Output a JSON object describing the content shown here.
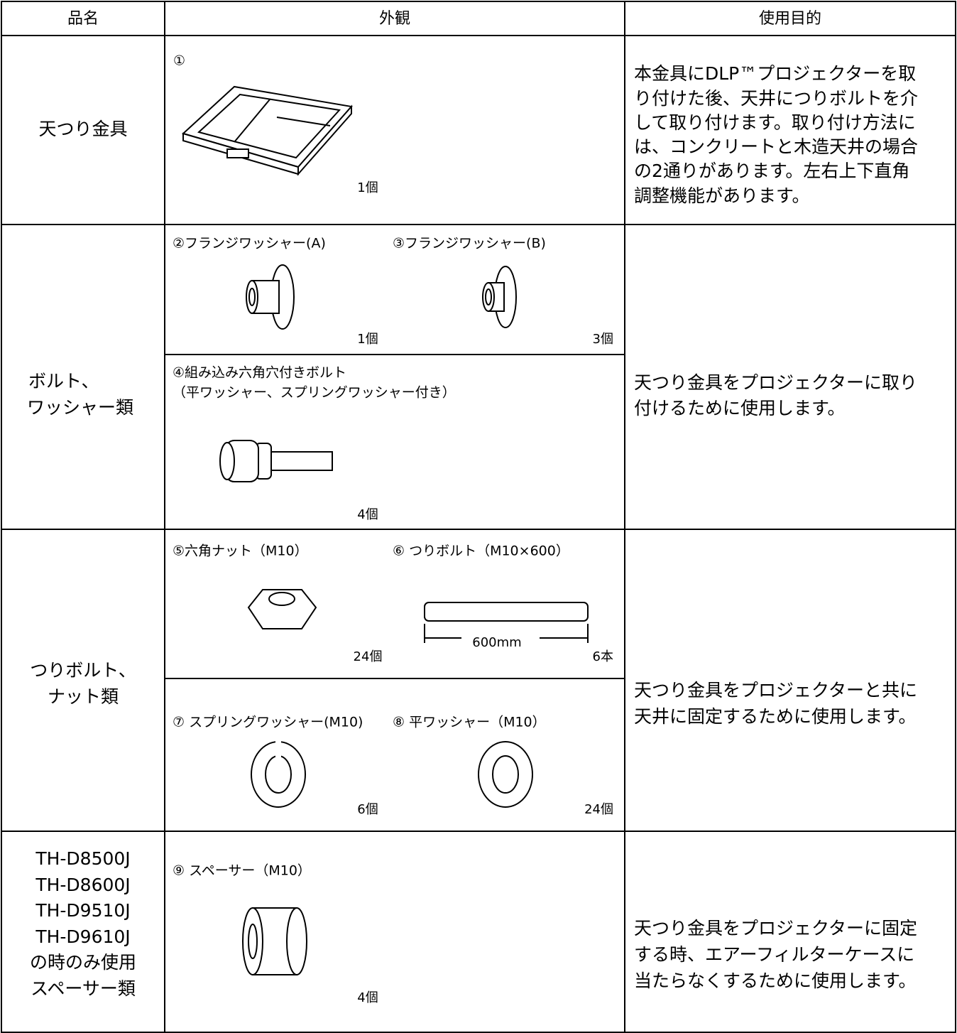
{
  "header": {
    "columns": [
      "品名",
      "外観",
      "使用目的"
    ]
  },
  "rows": [
    {
      "name": [
        "天つり金具"
      ],
      "items": [
        {
          "label": [
            "①"
          ],
          "count": "1個"
        }
      ],
      "purpose": [
        "本金具にDLP™プロジェクターを取",
        "り付けた後、天井につりボルトを介",
        "して取り付けます。取り付け方法に",
        "は、コンクリートと木造天井の場合",
        "の2通りがあります。左右上下直角",
        "調整機能があります。"
      ]
    },
    {
      "name": [
        "ボルト、",
        "ワッシャー類"
      ],
      "items": [
        {
          "label": [
            "②フランジワッシャー(A)"
          ],
          "count": "1個"
        },
        {
          "label": [
            "③フランジワッシャー(B)"
          ],
          "count": "3個"
        },
        {
          "label": [
            "④組み込み六角穴付きボルト",
            "（平ワッシャー、スプリングワッシャー付き）"
          ],
          "count": "4個"
        }
      ],
      "purpose": [
        "天つり金具をプロジェクターに取り",
        "付けるために使用します。"
      ]
    },
    {
      "name": [
        "つりボルト、",
        "ナット類"
      ],
      "items": [
        {
          "label": [
            "⑤六角ナット（M10）"
          ],
          "count": "24個"
        },
        {
          "label": [
            "⑥ つりボルト（M10×600）"
          ],
          "count": "6本",
          "dimension": "600mm"
        },
        {
          "label": [
            "⑦ スプリングワッシャー(M10)"
          ],
          "count": "6個"
        },
        {
          "label": [
            "⑧ 平ワッシャー（M10）"
          ],
          "count": "24個"
        }
      ],
      "purpose": [
        "天つり金具をプロジェクターと共に",
        "天井に固定するために使用します。"
      ]
    },
    {
      "name": [
        "TH-D8500J",
        "TH-D8600J",
        "TH-D9510J",
        "TH-D9610J",
        "の時のみ使用",
        "スペーサー類"
      ],
      "items": [
        {
          "label": [
            "⑨ スペーサー（M10）"
          ],
          "count": "4個"
        }
      ],
      "purpose": [
        "天つり金具をプロジェクターに固定",
        "する時、エアーフィルターケースに",
        "当たらなくするために使用します。"
      ]
    }
  ]
}
